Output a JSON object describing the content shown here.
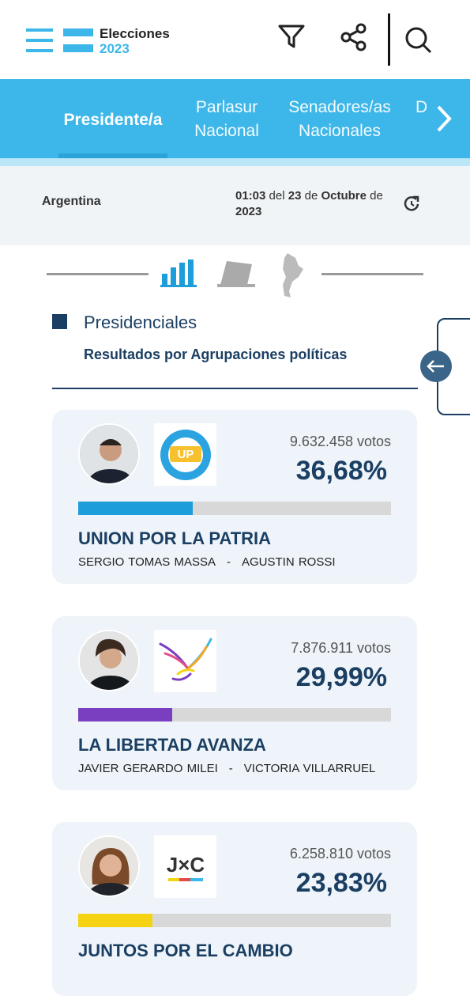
{
  "header": {
    "brand": "Elecciones",
    "year": "2023"
  },
  "tabs": [
    "Presidente/a",
    "Parlasur Nacional",
    "Senadores/as Nacionales",
    "D"
  ],
  "info": {
    "place": "Argentina",
    "time": "01:03",
    "del": "del",
    "day": "23",
    "de1": "de",
    "month": "Octubre",
    "de2": "de",
    "year": "2023"
  },
  "section": {
    "title": "Presidenciales",
    "subtitle": "Resultados por Agrupaciones políticas"
  },
  "candidate_separator": "-",
  "parties": [
    {
      "name": "UNION POR LA PATRIA",
      "logo_text": "UP",
      "votes": "9.632.458 votos",
      "percent": {
        "value": 36.68,
        "label": "36,68%"
      },
      "color": "#1e9ddb",
      "candidates": [
        "SERGIO TOMAS MASSA",
        "AGUSTIN ROSSI"
      ]
    },
    {
      "name": "LA LIBERTAD AVANZA",
      "votes": "7.876.911 votos",
      "percent": {
        "value": 29.99,
        "label": "29,99%"
      },
      "color": "#7a3fc0",
      "candidates": [
        "JAVIER GERARDO MILEI",
        "VICTORIA VILLARRUEL"
      ]
    },
    {
      "name": "JUNTOS POR EL CAMBIO",
      "logo_text": "J×C",
      "votes": "6.258.810 votos",
      "percent": {
        "value": 23.83,
        "label": "23,83%"
      },
      "color": "#f5d312",
      "candidates": []
    }
  ]
}
